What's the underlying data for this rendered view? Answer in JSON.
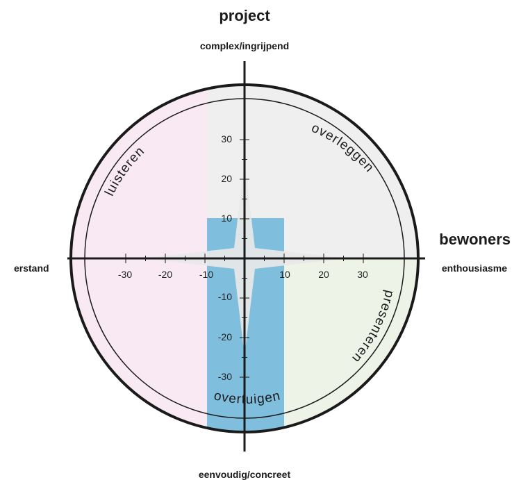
{
  "titles": {
    "vertical_axis": "project",
    "horizontal_axis": "bewoners"
  },
  "poles": {
    "top": "complex/ingrijpend",
    "bottom": "eenvoudig/concreet",
    "left": "erstand",
    "right": "enthousiasme"
  },
  "quadrants": {
    "top_left": "luisteren",
    "top_right": "overleggen",
    "bottom_right": "presenteren",
    "bottom_left": "overtuigen"
  },
  "ticks": {
    "x": [
      "-30",
      "-20",
      "-10",
      "10",
      "20",
      "30"
    ],
    "y": [
      "30",
      "20",
      "10",
      "-10",
      "-20",
      "-30"
    ]
  },
  "colors": {
    "quadrant_left": "#f8e9f2",
    "quadrant_top_right": "#f0efef",
    "quadrant_bottom_right": "#eef3e8",
    "center_band": "#7fbfdd",
    "star": "#e8e8e8",
    "lines": "#1a1a1a"
  }
}
